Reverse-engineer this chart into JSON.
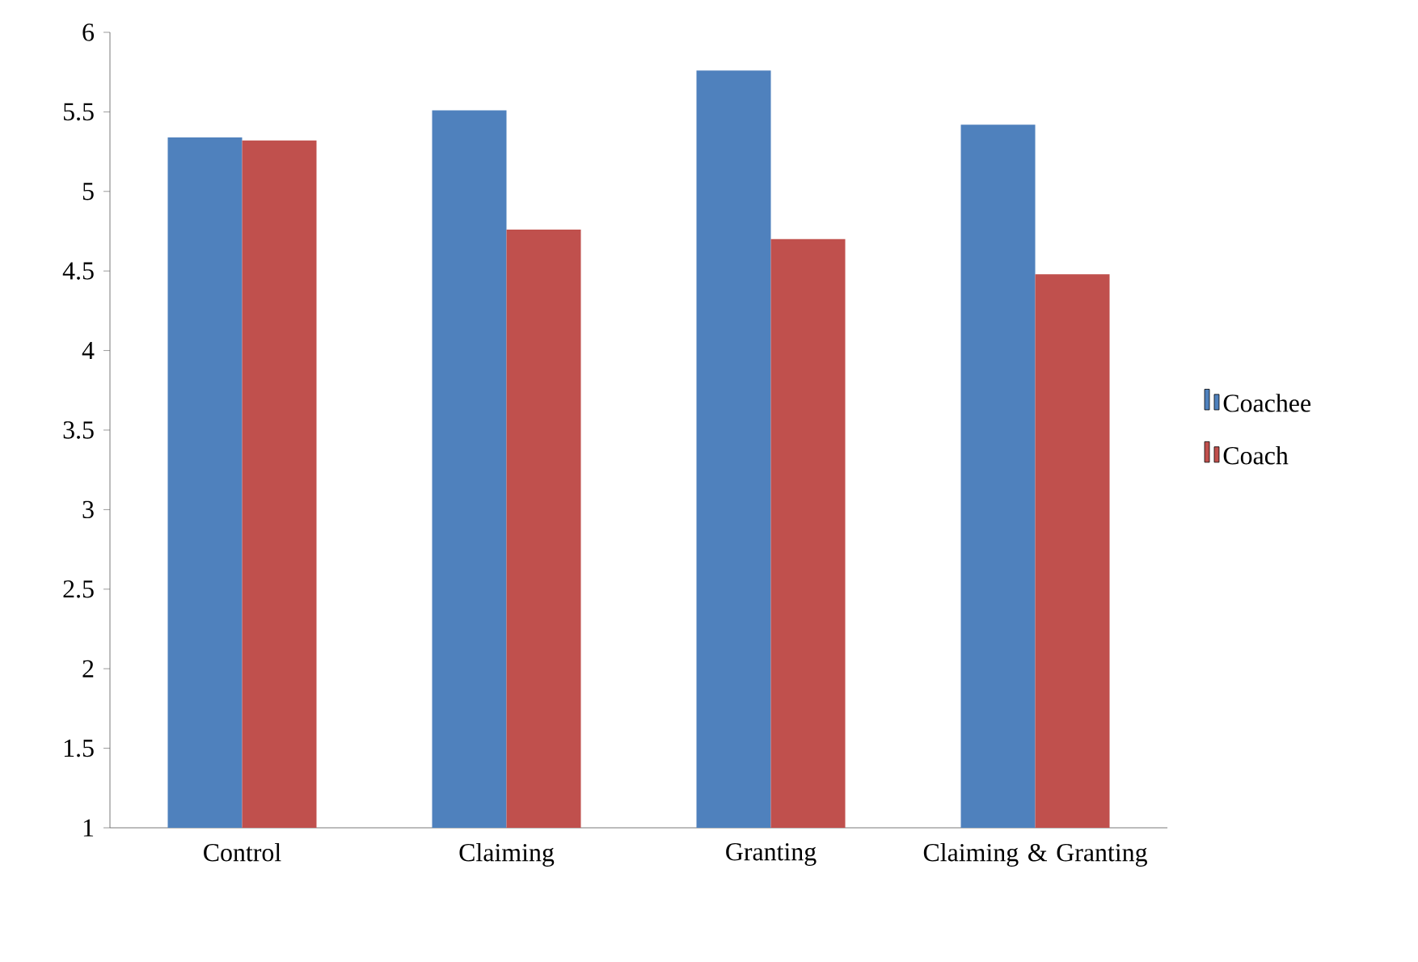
{
  "chart_data": {
    "type": "bar",
    "categories": [
      "Control",
      "Claiming",
      "Granting",
      "Claiming & Granting"
    ],
    "series": [
      {
        "name": "Coachee",
        "color": "#4f81bd",
        "values": [
          5.34,
          5.51,
          5.76,
          5.42
        ]
      },
      {
        "name": "Coach",
        "color": "#c0504d",
        "values": [
          5.32,
          4.76,
          4.7,
          4.48
        ]
      }
    ],
    "ylim": [
      1,
      6
    ],
    "yticks": [
      1,
      1.5,
      2,
      2.5,
      3,
      3.5,
      4,
      4.5,
      5,
      5.5,
      6
    ],
    "grid": false,
    "legend": "right"
  }
}
